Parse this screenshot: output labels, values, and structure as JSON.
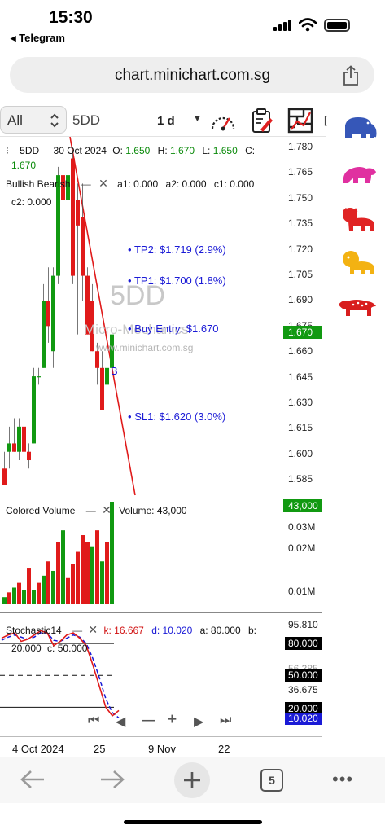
{
  "status": {
    "time": "15:30",
    "back_app": "◂ Telegram"
  },
  "browser": {
    "url": "chart.minichart.com.sg",
    "tabs_count": "5"
  },
  "toolbar": {
    "filter": "All",
    "symbol": "5DD",
    "interval": "1 d",
    "more": "["
  },
  "main": {
    "symbol": "5DD",
    "date": "30 Oct 2024",
    "o_label": "O:",
    "o": "1.650",
    "h_label": "H:",
    "h": "1.670",
    "l_label": "L:",
    "l": "1.650",
    "c_label": "C:",
    "c": "1.670",
    "study_name": "Bullish Bearish",
    "a1": "a1: 0.000",
    "a2": "a2: 0.000",
    "c1": "c1: 0.000",
    "c2": "c2: 0.000",
    "tp2": "TP2: $1.719 (2.9%)",
    "tp1": "TP1: $1.700 (1.8%)",
    "buy": "Buy Entry: $1.670",
    "sl1": "SL1: $1.620 (3.0%)",
    "marker_b": "B",
    "watermark_symbol": "5DD",
    "watermark_name": "Micro-Mechanics",
    "watermark_site": "www.minichart.com.sg",
    "price_tag": "1.670",
    "axis": [
      "1.780",
      "1.765",
      "1.750",
      "1.735",
      "1.720",
      "1.705",
      "1.690",
      "1.675",
      "1.660",
      "1.645",
      "1.630",
      "1.615",
      "1.600",
      "1.585"
    ]
  },
  "volume": {
    "title": "Colored Volume",
    "value": "Volume: 43,000",
    "tag": "43,000",
    "axis": [
      "0.03M",
      "0.02M",
      "0.01M"
    ]
  },
  "stoch": {
    "title": "Stochastic14",
    "k": "k: 16.667",
    "d": "d: 10.020",
    "a": "a: 80.000",
    "b": "b:",
    "b_val": "20.000",
    "c": "c: 50.000",
    "axis_top": "95.810",
    "axis_mid1": "56.385",
    "axis_mid2": "36.675",
    "tag80": "80.000",
    "tag50": "50.000",
    "tag20": "20.000",
    "tag10": "10.020"
  },
  "xaxis": [
    "4 Oct 2024",
    "25",
    "9 Nov",
    "22"
  ],
  "chart_data": {
    "type": "candlestick",
    "symbol": "5DD",
    "candles": [
      {
        "o": 1.59,
        "h": 1.6,
        "l": 1.58,
        "c": 1.58
      },
      {
        "o": 1.6,
        "h": 1.615,
        "l": 1.59,
        "c": 1.605
      },
      {
        "o": 1.605,
        "h": 1.62,
        "l": 1.6,
        "c": 1.6
      },
      {
        "o": 1.6,
        "h": 1.62,
        "l": 1.595,
        "c": 1.615
      },
      {
        "o": 1.615,
        "h": 1.635,
        "l": 1.6,
        "c": 1.6
      },
      {
        "o": 1.6,
        "h": 1.605,
        "l": 1.59,
        "c": 1.595
      },
      {
        "o": 1.605,
        "h": 1.65,
        "l": 1.605,
        "c": 1.645
      },
      {
        "o": 1.645,
        "h": 1.65,
        "l": 1.64,
        "c": 1.645
      },
      {
        "o": 1.65,
        "h": 1.7,
        "l": 1.65,
        "c": 1.69
      },
      {
        "o": 1.69,
        "h": 1.71,
        "l": 1.665,
        "c": 1.675
      },
      {
        "o": 1.66,
        "h": 1.71,
        "l": 1.65,
        "c": 1.705
      },
      {
        "o": 1.705,
        "h": 1.77,
        "l": 1.7,
        "c": 1.765
      },
      {
        "o": 1.765,
        "h": 1.775,
        "l": 1.74,
        "c": 1.75
      },
      {
        "o": 1.75,
        "h": 1.775,
        "l": 1.74,
        "c": 1.765
      },
      {
        "o": 1.775,
        "h": 1.78,
        "l": 1.7,
        "c": 1.705
      },
      {
        "o": 1.75,
        "h": 1.76,
        "l": 1.67,
        "c": 1.735
      },
      {
        "o": 1.74,
        "h": 1.76,
        "l": 1.69,
        "c": 1.705
      },
      {
        "o": 1.705,
        "h": 1.71,
        "l": 1.67,
        "c": 1.67
      },
      {
        "o": 1.69,
        "h": 1.7,
        "l": 1.66,
        "c": 1.66
      },
      {
        "o": 1.66,
        "h": 1.665,
        "l": 1.64,
        "c": 1.65
      },
      {
        "o": 1.65,
        "h": 1.66,
        "l": 1.625,
        "c": 1.625
      },
      {
        "o": 1.64,
        "h": 1.65,
        "l": 1.64,
        "c": 1.65
      },
      {
        "o": 1.65,
        "h": 1.67,
        "l": 1.65,
        "c": 1.67
      }
    ],
    "volume": [
      3000,
      5000,
      7000,
      9000,
      6000,
      15000,
      6000,
      9000,
      12000,
      18000,
      14000,
      26000,
      31000,
      11000,
      17000,
      22000,
      29000,
      26000,
      24000,
      31000,
      18000,
      26000,
      43000
    ],
    "volume_colors": [
      "g",
      "r",
      "g",
      "r",
      "g",
      "r",
      "g",
      "r",
      "g",
      "r",
      "g",
      "r",
      "g",
      "r",
      "r",
      "r",
      "r",
      "r",
      "g",
      "r",
      "g",
      "r",
      "g"
    ],
    "stoch_k": [
      85,
      88,
      90,
      82,
      84,
      88,
      92,
      90,
      78,
      82,
      88,
      90,
      85,
      78,
      60,
      40,
      20,
      12,
      17
    ],
    "stoch_d": [
      83,
      86,
      88,
      86,
      84,
      86,
      90,
      90,
      83,
      82,
      85,
      88,
      86,
      80,
      66,
      48,
      28,
      15,
      10
    ],
    "ylim": [
      1.578,
      1.784
    ],
    "volume_ylim": [
      0,
      43000
    ],
    "stoch_ylim": [
      5,
      100
    ]
  }
}
